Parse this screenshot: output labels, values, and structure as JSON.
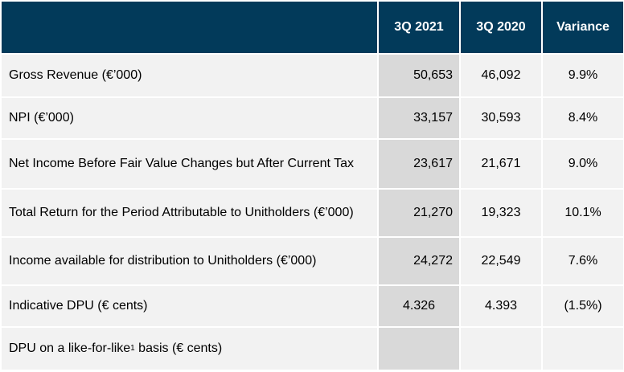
{
  "header": {
    "blank": "",
    "col1": "3Q 2021",
    "col2": "3Q 2020",
    "col3": "Variance"
  },
  "rows": [
    {
      "label": "Gross Revenue (€’000)",
      "v2021": "50,653",
      "v2020": "46,092",
      "variance": "9.9%"
    },
    {
      "label": "NPI (€’000)",
      "v2021": "33,157",
      "v2020": "30,593",
      "variance": "8.4%"
    },
    {
      "label": "Net Income Before Fair Value Changes but After Current Tax",
      "v2021": "23,617",
      "v2020": "21,671",
      "variance": "9.0%"
    },
    {
      "label": "Total Return for the Period Attributable to Unitholders (€’000)",
      "v2021": "21,270",
      "v2020": "19,323",
      "variance": "10.1%"
    },
    {
      "label": "Income available for distribution to Unitholders (€’000)",
      "v2021": "24,272",
      "v2020": "22,549",
      "variance": "7.6%"
    },
    {
      "label": "Indicative DPU (€ cents)",
      "v2021": "4.326",
      "v2020": "4.393",
      "variance": "(1.5%)"
    }
  ],
  "last_row": {
    "label_pre": "DPU on a like-for-like",
    "footnote": "1",
    "label_post": " basis (€ cents)",
    "v2021": "",
    "v2020": "",
    "variance": ""
  },
  "colors": {
    "header_bg": "#023a5a",
    "row_bg": "#f2f2f2",
    "highlight_col": "#d9d9d9"
  }
}
